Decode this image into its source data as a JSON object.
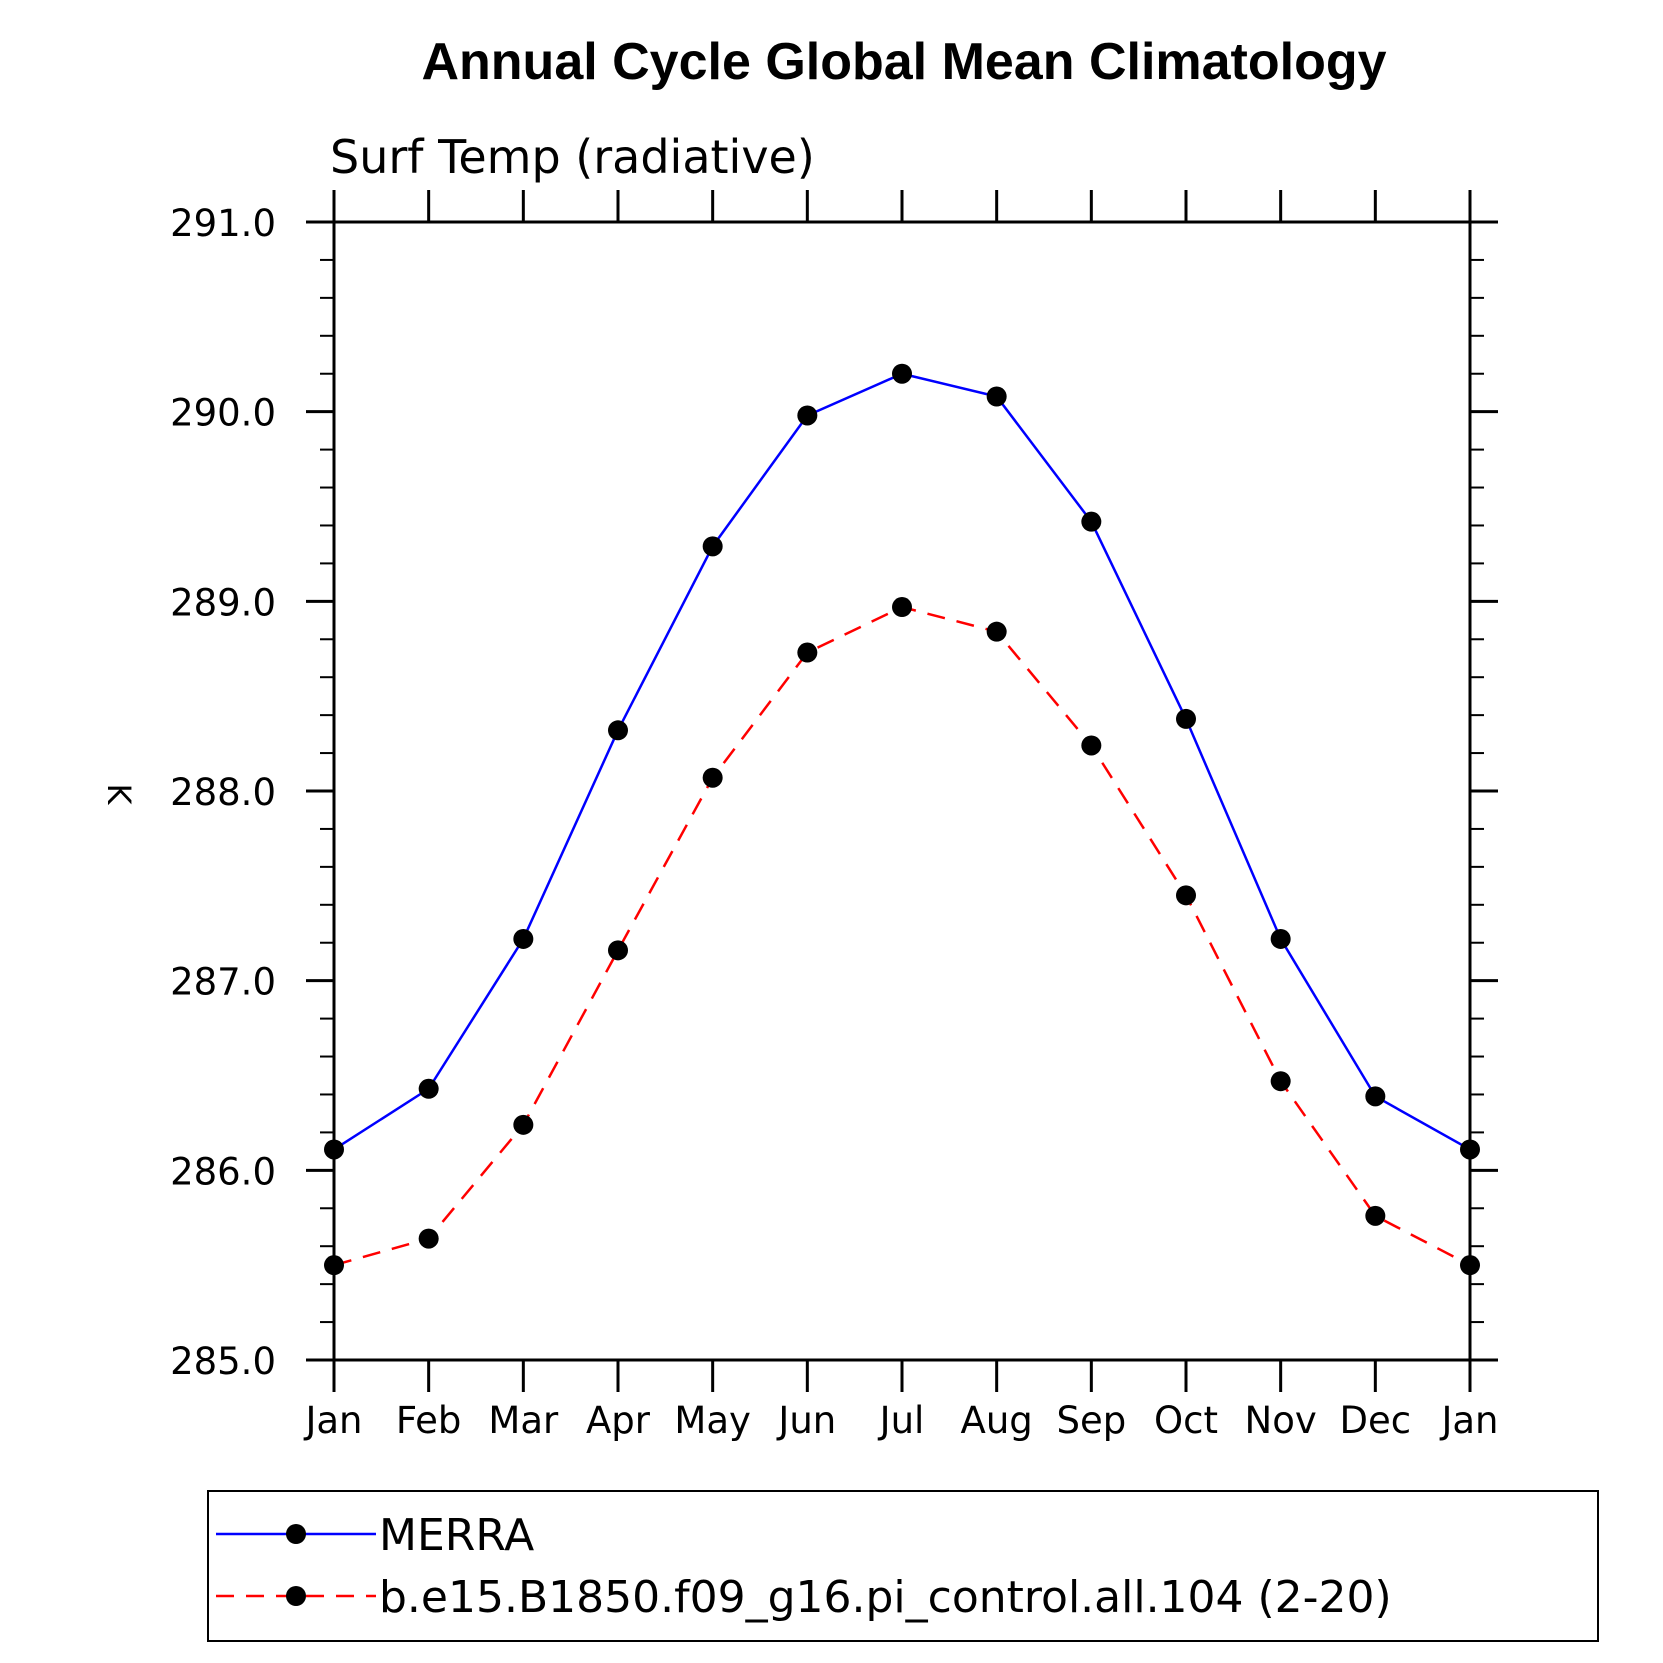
{
  "chart_data": {
    "type": "line",
    "title": "Annual Cycle Global Mean Climatology",
    "subtitle": "Surf Temp (radiative)",
    "ylabel": "K",
    "xlabel": "",
    "categories": [
      "Jan",
      "Feb",
      "Mar",
      "Apr",
      "May",
      "Jun",
      "Jul",
      "Aug",
      "Sep",
      "Oct",
      "Nov",
      "Dec",
      "Jan"
    ],
    "ylim": [
      285.0,
      291.0
    ],
    "yticks": [
      "285.0",
      "286.0",
      "287.0",
      "288.0",
      "289.0",
      "290.0",
      "291.0"
    ],
    "grid": false,
    "legend_position": "bottom",
    "series": [
      {
        "name": "MERRA",
        "color": "#0000ff",
        "dash": "solid",
        "values": [
          286.11,
          286.43,
          287.22,
          288.32,
          289.29,
          289.98,
          290.2,
          290.08,
          289.42,
          288.38,
          287.22,
          286.39,
          286.11
        ]
      },
      {
        "name": "b.e15.B1850.f09_g16.pi_control.all.104 (2-20)",
        "color": "#ff0000",
        "dash": "dashed",
        "values": [
          285.5,
          285.64,
          286.24,
          287.16,
          288.07,
          288.73,
          288.97,
          288.84,
          288.24,
          287.45,
          286.47,
          285.76,
          285.5
        ]
      }
    ]
  }
}
